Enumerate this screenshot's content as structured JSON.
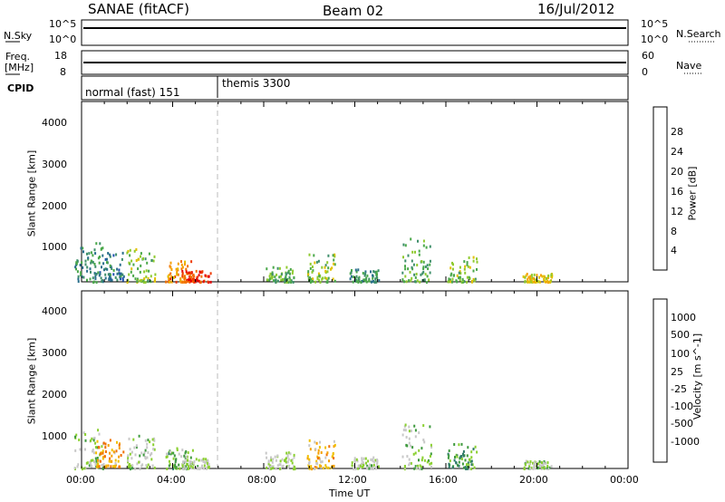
{
  "header": {
    "station": "SANAE (fitACF)",
    "beam": "Beam 02",
    "date": "16/Jul/2012"
  },
  "strips": {
    "nsky": {
      "label": "N.Sky",
      "ticks": [
        "10^5",
        "10^0"
      ]
    },
    "nsearch": {
      "label": "N.Search",
      "ticks": [
        "10^5",
        "10^0"
      ]
    },
    "freq": {
      "label_line1": "Freq.",
      "label_line2": "[MHz]",
      "ticks": [
        "18",
        "8"
      ]
    },
    "nave": {
      "label": "Nave",
      "ticks": [
        "60",
        "0"
      ]
    },
    "cpid": {
      "label": "CPID",
      "programs": [
        "normal (fast) 151",
        "themis 3300"
      ]
    }
  },
  "panels": {
    "ylabel": "Slant Range [km]",
    "yticks": [
      "4000",
      "3000",
      "2000",
      "1000"
    ],
    "xlabel": "Time UT",
    "xticks": [
      "00:00",
      "04:00",
      "08:00",
      "12:00",
      "16:00",
      "20:00",
      "00:00"
    ]
  },
  "colorbars": {
    "power": {
      "label": "Power [dB]",
      "ticks": [
        "28",
        "24",
        "20",
        "16",
        "12",
        "8",
        "4"
      ],
      "colors": [
        "#0026ff",
        "#1e4fb0",
        "#2a6f8c",
        "#3f8f6b",
        "#4aa84a",
        "#8fca2f",
        "#e0c000",
        "#f5a000",
        "#f27000",
        "#ee3a00",
        "#e60000"
      ]
    },
    "velocity": {
      "label": "Velocity [m s^-1]",
      "ticks": [
        "1000",
        "500",
        "100",
        "25",
        "-25",
        "-100",
        "-500",
        "-1000"
      ],
      "colors": [
        "#1a3fc0",
        "#2a5fa0",
        "#2f7a6a",
        "#3f9a3f",
        "#8ad030",
        "#c8c8c8",
        "#c8c8c8",
        "#f0c000",
        "#f5a000",
        "#f07000",
        "#ee3800",
        "#e60000"
      ]
    }
  },
  "chart_data": [
    {
      "type": "heatmap",
      "title": "Power",
      "xlabel": "Time UT",
      "ylabel": "Slant Range [km]",
      "xlim": [
        "00:00",
        "00:00"
      ],
      "ylim": [
        180,
        4500
      ],
      "colorbar": {
        "label": "Power [dB]",
        "range": [
          0,
          30
        ]
      },
      "clusters": [
        {
          "t": 0.3,
          "r0": 200,
          "r1": 1150,
          "level": 10
        },
        {
          "t": 1.2,
          "r0": 250,
          "r1": 900,
          "level": 8
        },
        {
          "t": 2.6,
          "r0": 200,
          "r1": 1000,
          "level": 14
        },
        {
          "t": 4.3,
          "r0": 200,
          "r1": 700,
          "level": 22
        },
        {
          "t": 5.0,
          "r0": 200,
          "r1": 500,
          "level": 26
        },
        {
          "t": 8.7,
          "r0": 200,
          "r1": 600,
          "level": 12
        },
        {
          "t": 10.5,
          "r0": 200,
          "r1": 900,
          "level": 14
        },
        {
          "t": 12.4,
          "r0": 200,
          "r1": 500,
          "level": 10
        },
        {
          "t": 14.7,
          "r0": 200,
          "r1": 1300,
          "level": 12
        },
        {
          "t": 16.7,
          "r0": 200,
          "r1": 800,
          "level": 14
        },
        {
          "t": 20.0,
          "r0": 200,
          "r1": 400,
          "level": 18
        }
      ]
    },
    {
      "type": "heatmap",
      "title": "Velocity",
      "xlabel": "Time UT",
      "ylabel": "Slant Range [km]",
      "xlim": [
        "00:00",
        "00:00"
      ],
      "ylim": [
        180,
        4500
      ],
      "colorbar": {
        "label": "Velocity [m s^-1]",
        "range": [
          -1000,
          1000
        ]
      },
      "clusters": [
        {
          "t": 0.3,
          "r0": 200,
          "r1": 1150,
          "level": -200
        },
        {
          "t": 1.2,
          "r0": 250,
          "r1": 900,
          "level": 400
        },
        {
          "t": 2.6,
          "r0": 200,
          "r1": 1000,
          "level": -150
        },
        {
          "t": 4.3,
          "r0": 200,
          "r1": 700,
          "level": -300
        },
        {
          "t": 5.0,
          "r0": 200,
          "r1": 500,
          "level": -100
        },
        {
          "t": 8.7,
          "r0": 200,
          "r1": 600,
          "level": -80
        },
        {
          "t": 10.5,
          "r0": 200,
          "r1": 900,
          "level": 300
        },
        {
          "t": 12.4,
          "r0": 200,
          "r1": 500,
          "level": -120
        },
        {
          "t": 14.7,
          "r0": 200,
          "r1": 1300,
          "level": -200
        },
        {
          "t": 16.7,
          "r0": 200,
          "r1": 800,
          "level": -400
        },
        {
          "t": 20.0,
          "r0": 200,
          "r1": 400,
          "level": -150
        }
      ]
    }
  ]
}
